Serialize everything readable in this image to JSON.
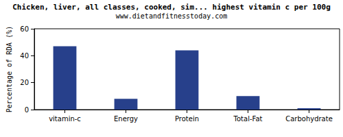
{
  "chart_data": {
    "type": "bar",
    "title": "Chicken, liver, all classes, cooked, sim... highest vitamin c per 100g",
    "subtitle": "www.dietandfitnesstoday.com",
    "ylabel": "Percentage of RDA (%)",
    "categories": [
      "vitamin-c",
      "Energy",
      "Protein",
      "Total-Fat",
      "Carbohydrate"
    ],
    "values": [
      47,
      8,
      44,
      10,
      1
    ],
    "color": "#27408b",
    "ylim": [
      0,
      60
    ],
    "yticks": [
      0,
      20,
      40,
      60
    ],
    "grid": false
  }
}
